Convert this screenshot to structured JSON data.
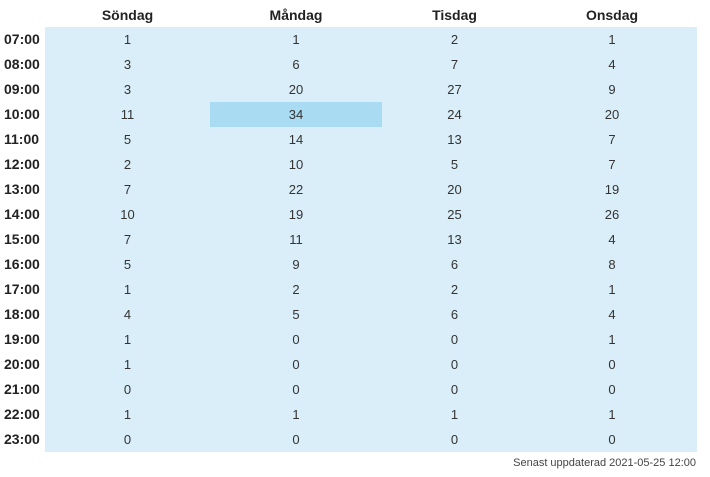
{
  "days": [
    "Söndag",
    "Måndag",
    "Tisdag",
    "Onsdag"
  ],
  "rows": [
    {
      "hour": "07:00",
      "values": [
        "1",
        "1",
        "2",
        "1"
      ]
    },
    {
      "hour": "08:00",
      "values": [
        "3",
        "6",
        "7",
        "4"
      ]
    },
    {
      "hour": "09:00",
      "values": [
        "3",
        "20",
        "27",
        "9"
      ]
    },
    {
      "hour": "10:00",
      "values": [
        "11",
        "34",
        "24",
        "20"
      ]
    },
    {
      "hour": "11:00",
      "values": [
        "5",
        "14",
        "13",
        "7"
      ]
    },
    {
      "hour": "12:00",
      "values": [
        "2",
        "10",
        "5",
        "7"
      ]
    },
    {
      "hour": "13:00",
      "values": [
        "7",
        "22",
        "20",
        "19"
      ]
    },
    {
      "hour": "14:00",
      "values": [
        "10",
        "19",
        "25",
        "26"
      ]
    },
    {
      "hour": "15:00",
      "values": [
        "7",
        "11",
        "13",
        "4"
      ]
    },
    {
      "hour": "16:00",
      "values": [
        "5",
        "9",
        "6",
        "8"
      ]
    },
    {
      "hour": "17:00",
      "values": [
        "1",
        "2",
        "2",
        "1"
      ]
    },
    {
      "hour": "18:00",
      "values": [
        "4",
        "5",
        "6",
        "4"
      ]
    },
    {
      "hour": "19:00",
      "values": [
        "1",
        "0",
        "0",
        "1"
      ]
    },
    {
      "hour": "20:00",
      "values": [
        "1",
        "0",
        "0",
        "0"
      ]
    },
    {
      "hour": "21:00",
      "values": [
        "0",
        "0",
        "0",
        "0"
      ]
    },
    {
      "hour": "22:00",
      "values": [
        "1",
        "1",
        "1",
        "1"
      ]
    },
    {
      "hour": "23:00",
      "values": [
        "0",
        "0",
        "0",
        "0"
      ]
    }
  ],
  "highlight": {
    "row": 3,
    "col": 1
  },
  "colors": {
    "table_bg": "#d9eef9",
    "highlight_bg": "#a9dbf3"
  },
  "footer": {
    "updated": "Senast uppdaterad 2021-05-25 12:00"
  }
}
